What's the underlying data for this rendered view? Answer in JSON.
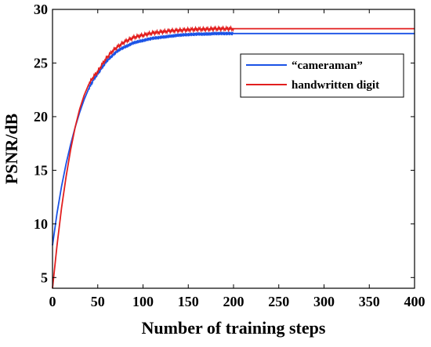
{
  "chart_data": {
    "type": "line",
    "title": "",
    "xlabel": "Number of training steps",
    "ylabel": "PSNR/dB",
    "xlim": [
      0,
      400
    ],
    "ylim": [
      4,
      30
    ],
    "xticks": [
      0,
      50,
      100,
      150,
      200,
      250,
      300,
      350,
      400
    ],
    "yticks": [
      5,
      10,
      15,
      20,
      25,
      30
    ],
    "grid": false,
    "legend_position": "top-right",
    "series": [
      {
        "name": "“cameraman”",
        "color": "#1a52e6",
        "x": [
          0,
          5,
          10,
          15,
          20,
          25,
          30,
          35,
          40,
          45,
          50,
          55,
          60,
          65,
          70,
          75,
          80,
          85,
          90,
          95,
          100,
          110,
          120,
          130,
          140,
          150,
          160,
          170,
          180,
          190,
          200,
          250,
          300,
          350,
          400
        ],
        "y": [
          8.0,
          11.0,
          13.5,
          15.6,
          17.4,
          19.0,
          20.4,
          21.6,
          22.6,
          23.4,
          24.0,
          24.6,
          25.2,
          25.6,
          26.0,
          26.3,
          26.5,
          26.7,
          26.9,
          27.0,
          27.1,
          27.3,
          27.4,
          27.5,
          27.6,
          27.65,
          27.7,
          27.7,
          27.75,
          27.75,
          27.75,
          27.75,
          27.75,
          27.75,
          27.75
        ]
      },
      {
        "name": "handwritten digit",
        "color": "#e21f1f",
        "x": [
          0,
          5,
          10,
          15,
          20,
          25,
          30,
          35,
          40,
          45,
          50,
          55,
          60,
          65,
          70,
          75,
          80,
          85,
          90,
          95,
          100,
          110,
          120,
          130,
          140,
          150,
          160,
          170,
          180,
          190,
          200,
          250,
          300,
          350,
          400
        ],
        "y": [
          4.0,
          8.0,
          11.5,
          14.4,
          16.9,
          19.0,
          20.7,
          22.0,
          23.0,
          23.7,
          24.2,
          24.9,
          25.5,
          26.0,
          26.4,
          26.7,
          27.0,
          27.2,
          27.4,
          27.5,
          27.6,
          27.8,
          27.9,
          28.0,
          28.05,
          28.1,
          28.15,
          28.15,
          28.2,
          28.2,
          28.2,
          28.2,
          28.2,
          28.2,
          28.2
        ]
      }
    ]
  }
}
